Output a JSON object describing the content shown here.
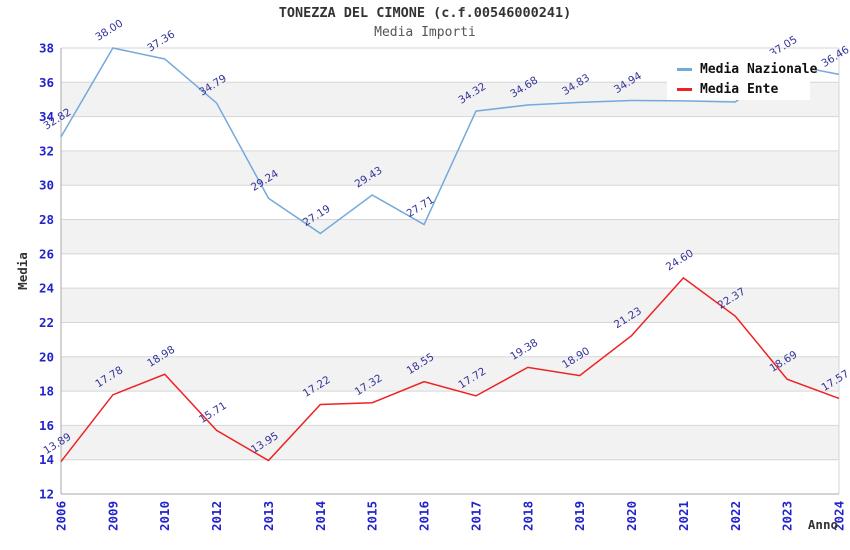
{
  "chart_data": {
    "type": "line",
    "title": "TONEZZA DEL CIMONE (c.f.00546000241)",
    "subtitle": "Media Importi",
    "xlabel": "Anno",
    "ylabel": "Media",
    "ylim": [
      12,
      38
    ],
    "ytick_step": 2,
    "grid": "horizontal-bands",
    "legend_position": "top-right",
    "categories": [
      "2006",
      "2009",
      "2010",
      "2012",
      "2013",
      "2014",
      "2015",
      "2016",
      "2017",
      "2018",
      "2019",
      "2020",
      "2021",
      "2022",
      "2023",
      "2024"
    ],
    "series": [
      {
        "name": "Media Nazionale",
        "color": "#74a9dc",
        "values": [
          32.82,
          38.0,
          37.36,
          34.79,
          29.24,
          27.19,
          29.43,
          27.71,
          34.32,
          34.68,
          34.83,
          34.94,
          34.92,
          34.85,
          37.05,
          36.46
        ],
        "labels": [
          "32.82",
          "38.00",
          "37.36",
          "34.79",
          "29.24",
          "27.19",
          "29.43",
          "27.71",
          "34.32",
          "34.68",
          "34.83",
          "34.94",
          null,
          null,
          "37.05",
          "36.46"
        ]
      },
      {
        "name": "Media Ente",
        "color": "#ee2222",
        "values": [
          13.89,
          17.78,
          18.98,
          15.71,
          13.95,
          17.22,
          17.32,
          18.55,
          17.72,
          19.38,
          18.9,
          21.23,
          24.6,
          22.37,
          18.69,
          17.57
        ],
        "labels": [
          "13.89",
          "17.78",
          "18.98",
          "15.71",
          "13.95",
          "17.22",
          "17.32",
          "18.55",
          "17.72",
          "19.38",
          "18.90",
          "21.23",
          "24.60",
          "22.37",
          "18.69",
          "17.57"
        ]
      }
    ],
    "style": {
      "background": "#ffffff",
      "band_color": "#f2f2f2",
      "grid_color": "#d6d6d6",
      "axis_color": "#aaaaaa",
      "tick_label_color": "#2323cc",
      "data_label_color": "#333399",
      "axis_title_color": "#333333",
      "title_color": "#333333",
      "subtitle_color": "#555555"
    }
  }
}
